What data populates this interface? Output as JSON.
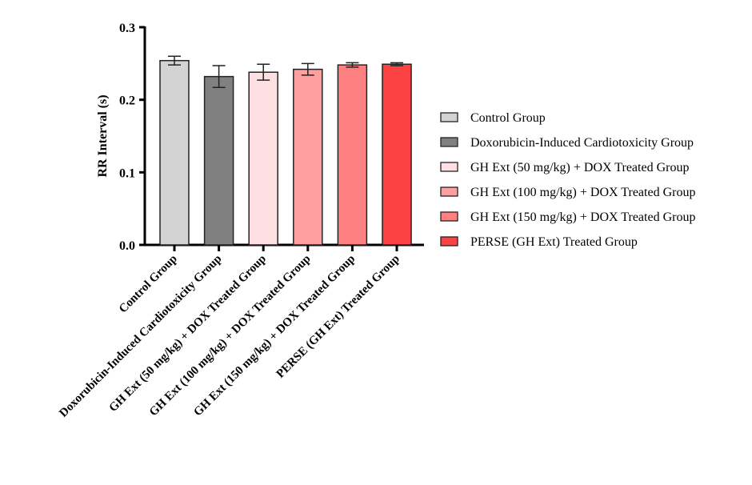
{
  "chart_data": {
    "type": "bar",
    "title": "",
    "xlabel": "",
    "ylabel": "RR Interval (s)",
    "ylim": [
      0,
      0.3
    ],
    "yticks": [
      "0.0",
      "0.1",
      "0.2",
      "0.3"
    ],
    "ytick_values": [
      0,
      0.1,
      0.2,
      0.3
    ],
    "grid": false,
    "legend_position": "right",
    "categories": [
      "Control Group",
      "Doxorubicin-Induced Cardiotoxicity Group",
      "GH Ext (50 mg/kg) + DOX Treated Group",
      "GH Ext (100 mg/kg) + DOX Treated Group",
      "GH Ext (150 mg/kg) + DOX Treated Group",
      "PERSE (GH Ext) Treated Group"
    ],
    "values": [
      0.254,
      0.232,
      0.238,
      0.242,
      0.248,
      0.249
    ],
    "errors": [
      0.006,
      0.015,
      0.011,
      0.008,
      0.003,
      0.002
    ],
    "colors": [
      "#d3d3d3",
      "#808080",
      "#ffe0e2",
      "#ff9fa0",
      "#ff8080",
      "#fc4242"
    ]
  }
}
